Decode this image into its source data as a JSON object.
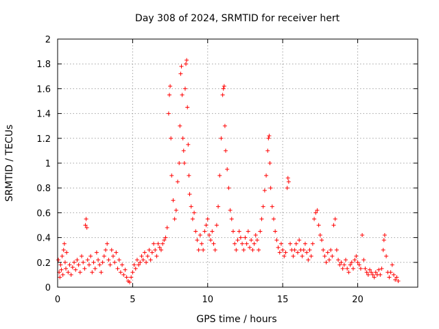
{
  "chart_data": {
    "type": "scatter",
    "title": "Day 308 of 2024, SRMTID for receiver hert",
    "xlabel": "GPS time / hours",
    "ylabel": "SRMTID / TECUs",
    "xlim": [
      0,
      24
    ],
    "ylim": [
      0,
      2
    ],
    "xticks": [
      0,
      5,
      10,
      15,
      20
    ],
    "xtick_labels": [
      "0",
      "5",
      "10",
      "15",
      "20"
    ],
    "yticks": [
      0,
      0.2,
      0.4,
      0.6,
      0.8,
      1,
      1.2,
      1.4,
      1.6,
      1.8,
      2
    ],
    "ytick_labels": [
      "0",
      "0.2",
      "0.4",
      "0.6",
      "0.8",
      "1",
      "1.2",
      "1.4",
      "1.6",
      "1.8",
      "2"
    ],
    "grid": true,
    "marker": "+",
    "color": "#ff0000",
    "series": [
      {
        "name": "SRMTID",
        "points": [
          [
            0.05,
            0.22
          ],
          [
            0.1,
            0.12
          ],
          [
            0.15,
            0.08
          ],
          [
            0.2,
            0.18
          ],
          [
            0.25,
            0.14
          ],
          [
            0.3,
            0.25
          ],
          [
            0.35,
            0.1
          ],
          [
            0.4,
            0.3
          ],
          [
            0.45,
            0.35
          ],
          [
            0.5,
            0.2
          ],
          [
            0.55,
            0.15
          ],
          [
            0.6,
            0.28
          ],
          [
            0.7,
            0.12
          ],
          [
            0.8,
            0.18
          ],
          [
            0.9,
            0.1
          ],
          [
            1.0,
            0.16
          ],
          [
            1.1,
            0.2
          ],
          [
            1.2,
            0.14
          ],
          [
            1.3,
            0.22
          ],
          [
            1.4,
            0.18
          ],
          [
            1.5,
            0.12
          ],
          [
            1.6,
            0.25
          ],
          [
            1.7,
            0.2
          ],
          [
            1.8,
            0.15
          ],
          [
            1.85,
            0.5
          ],
          [
            1.9,
            0.55
          ],
          [
            1.95,
            0.48
          ],
          [
            2.0,
            0.22
          ],
          [
            2.1,
            0.18
          ],
          [
            2.2,
            0.25
          ],
          [
            2.3,
            0.12
          ],
          [
            2.4,
            0.2
          ],
          [
            2.5,
            0.15
          ],
          [
            2.6,
            0.28
          ],
          [
            2.7,
            0.22
          ],
          [
            2.8,
            0.18
          ],
          [
            2.9,
            0.12
          ],
          [
            3.0,
            0.2
          ],
          [
            3.1,
            0.25
          ],
          [
            3.2,
            0.3
          ],
          [
            3.3,
            0.35
          ],
          [
            3.4,
            0.22
          ],
          [
            3.5,
            0.18
          ],
          [
            3.6,
            0.3
          ],
          [
            3.7,
            0.25
          ],
          [
            3.8,
            0.2
          ],
          [
            3.9,
            0.28
          ],
          [
            4.0,
            0.15
          ],
          [
            4.1,
            0.22
          ],
          [
            4.2,
            0.12
          ],
          [
            4.3,
            0.18
          ],
          [
            4.4,
            0.1
          ],
          [
            4.5,
            0.14
          ],
          [
            4.6,
            0.08
          ],
          [
            4.7,
            0.05
          ],
          [
            4.8,
            0.04
          ],
          [
            4.9,
            0.08
          ],
          [
            5.0,
            0.12
          ],
          [
            5.1,
            0.18
          ],
          [
            5.2,
            0.15
          ],
          [
            5.3,
            0.22
          ],
          [
            5.4,
            0.18
          ],
          [
            5.5,
            0.2
          ],
          [
            5.6,
            0.25
          ],
          [
            5.7,
            0.22
          ],
          [
            5.8,
            0.28
          ],
          [
            5.9,
            0.2
          ],
          [
            6.0,
            0.25
          ],
          [
            6.1,
            0.3
          ],
          [
            6.2,
            0.22
          ],
          [
            6.3,
            0.28
          ],
          [
            6.4,
            0.35
          ],
          [
            6.5,
            0.3
          ],
          [
            6.6,
            0.25
          ],
          [
            6.7,
            0.35
          ],
          [
            6.8,
            0.32
          ],
          [
            6.9,
            0.3
          ],
          [
            7.0,
            0.35
          ],
          [
            7.1,
            0.38
          ],
          [
            7.2,
            0.4
          ],
          [
            7.3,
            0.48
          ],
          [
            7.4,
            1.4
          ],
          [
            7.45,
            1.55
          ],
          [
            7.5,
            1.62
          ],
          [
            7.55,
            1.2
          ],
          [
            7.6,
            0.9
          ],
          [
            7.7,
            0.7
          ],
          [
            7.8,
            0.55
          ],
          [
            7.9,
            0.62
          ],
          [
            8.0,
            0.85
          ],
          [
            8.1,
            1.0
          ],
          [
            8.15,
            1.3
          ],
          [
            8.2,
            1.72
          ],
          [
            8.25,
            1.78
          ],
          [
            8.3,
            1.55
          ],
          [
            8.35,
            1.2
          ],
          [
            8.4,
            1.1
          ],
          [
            8.45,
            1.0
          ],
          [
            8.5,
            1.6
          ],
          [
            8.55,
            1.8
          ],
          [
            8.6,
            1.83
          ],
          [
            8.65,
            1.45
          ],
          [
            8.7,
            1.15
          ],
          [
            8.75,
            0.9
          ],
          [
            8.8,
            0.75
          ],
          [
            8.9,
            0.65
          ],
          [
            9.0,
            0.55
          ],
          [
            9.1,
            0.6
          ],
          [
            9.2,
            0.45
          ],
          [
            9.3,
            0.38
          ],
          [
            9.4,
            0.3
          ],
          [
            9.5,
            0.42
          ],
          [
            9.6,
            0.35
          ],
          [
            9.7,
            0.3
          ],
          [
            9.8,
            0.45
          ],
          [
            9.9,
            0.5
          ],
          [
            10.0,
            0.55
          ],
          [
            10.1,
            0.42
          ],
          [
            10.2,
            0.38
          ],
          [
            10.3,
            0.45
          ],
          [
            10.4,
            0.35
          ],
          [
            10.5,
            0.3
          ],
          [
            10.6,
            0.5
          ],
          [
            10.7,
            0.65
          ],
          [
            10.8,
            0.9
          ],
          [
            10.9,
            1.2
          ],
          [
            11.0,
            1.55
          ],
          [
            11.05,
            1.6
          ],
          [
            11.1,
            1.62
          ],
          [
            11.15,
            1.3
          ],
          [
            11.2,
            1.1
          ],
          [
            11.3,
            0.95
          ],
          [
            11.4,
            0.8
          ],
          [
            11.5,
            0.62
          ],
          [
            11.6,
            0.55
          ],
          [
            11.7,
            0.45
          ],
          [
            11.8,
            0.35
          ],
          [
            11.9,
            0.3
          ],
          [
            12.0,
            0.38
          ],
          [
            12.1,
            0.45
          ],
          [
            12.2,
            0.4
          ],
          [
            12.3,
            0.35
          ],
          [
            12.4,
            0.3
          ],
          [
            12.5,
            0.4
          ],
          [
            12.6,
            0.35
          ],
          [
            12.7,
            0.45
          ],
          [
            12.8,
            0.32
          ],
          [
            12.9,
            0.38
          ],
          [
            13.0,
            0.3
          ],
          [
            13.1,
            0.35
          ],
          [
            13.2,
            0.42
          ],
          [
            13.3,
            0.38
          ],
          [
            13.4,
            0.3
          ],
          [
            13.5,
            0.45
          ],
          [
            13.6,
            0.55
          ],
          [
            13.7,
            0.65
          ],
          [
            13.8,
            0.78
          ],
          [
            13.9,
            0.9
          ],
          [
            14.0,
            1.1
          ],
          [
            14.05,
            1.2
          ],
          [
            14.1,
            1.22
          ],
          [
            14.15,
            1.0
          ],
          [
            14.2,
            0.8
          ],
          [
            14.3,
            0.65
          ],
          [
            14.4,
            0.55
          ],
          [
            14.5,
            0.45
          ],
          [
            14.6,
            0.38
          ],
          [
            14.7,
            0.32
          ],
          [
            14.8,
            0.28
          ],
          [
            14.9,
            0.35
          ],
          [
            15.0,
            0.3
          ],
          [
            15.1,
            0.25
          ],
          [
            15.2,
            0.28
          ],
          [
            15.3,
            0.8
          ],
          [
            15.35,
            0.88
          ],
          [
            15.4,
            0.85
          ],
          [
            15.5,
            0.35
          ],
          [
            15.6,
            0.3
          ],
          [
            15.7,
            0.25
          ],
          [
            15.8,
            0.3
          ],
          [
            15.9,
            0.35
          ],
          [
            16.0,
            0.28
          ],
          [
            16.1,
            0.38
          ],
          [
            16.2,
            0.3
          ],
          [
            16.3,
            0.25
          ],
          [
            16.4,
            0.3
          ],
          [
            16.5,
            0.35
          ],
          [
            16.6,
            0.28
          ],
          [
            16.7,
            0.22
          ],
          [
            16.8,
            0.3
          ],
          [
            16.9,
            0.25
          ],
          [
            17.0,
            0.35
          ],
          [
            17.1,
            0.55
          ],
          [
            17.2,
            0.6
          ],
          [
            17.3,
            0.62
          ],
          [
            17.4,
            0.5
          ],
          [
            17.5,
            0.42
          ],
          [
            17.6,
            0.38
          ],
          [
            17.7,
            0.3
          ],
          [
            17.8,
            0.25
          ],
          [
            17.9,
            0.2
          ],
          [
            18.0,
            0.28
          ],
          [
            18.1,
            0.22
          ],
          [
            18.2,
            0.3
          ],
          [
            18.3,
            0.25
          ],
          [
            18.4,
            0.5
          ],
          [
            18.5,
            0.55
          ],
          [
            18.6,
            0.3
          ],
          [
            18.7,
            0.22
          ],
          [
            18.8,
            0.18
          ],
          [
            18.9,
            0.2
          ],
          [
            19.0,
            0.15
          ],
          [
            19.1,
            0.18
          ],
          [
            19.2,
            0.22
          ],
          [
            19.3,
            0.15
          ],
          [
            19.4,
            0.12
          ],
          [
            19.5,
            0.18
          ],
          [
            19.6,
            0.2
          ],
          [
            19.7,
            0.15
          ],
          [
            19.8,
            0.22
          ],
          [
            19.9,
            0.25
          ],
          [
            20.0,
            0.2
          ],
          [
            20.1,
            0.18
          ],
          [
            20.2,
            0.15
          ],
          [
            20.3,
            0.42
          ],
          [
            20.4,
            0.22
          ],
          [
            20.5,
            0.15
          ],
          [
            20.6,
            0.12
          ],
          [
            20.7,
            0.1
          ],
          [
            20.8,
            0.14
          ],
          [
            20.9,
            0.12
          ],
          [
            21.0,
            0.1
          ],
          [
            21.1,
            0.08
          ],
          [
            21.2,
            0.12
          ],
          [
            21.3,
            0.1
          ],
          [
            21.4,
            0.14
          ],
          [
            21.5,
            0.1
          ],
          [
            21.6,
            0.15
          ],
          [
            21.7,
            0.3
          ],
          [
            21.75,
            0.38
          ],
          [
            21.8,
            0.42
          ],
          [
            21.9,
            0.25
          ],
          [
            22.0,
            0.12
          ],
          [
            22.1,
            0.08
          ],
          [
            22.2,
            0.12
          ],
          [
            22.3,
            0.18
          ],
          [
            22.4,
            0.1
          ],
          [
            22.5,
            0.06
          ],
          [
            22.6,
            0.08
          ],
          [
            22.7,
            0.05
          ]
        ]
      }
    ]
  }
}
